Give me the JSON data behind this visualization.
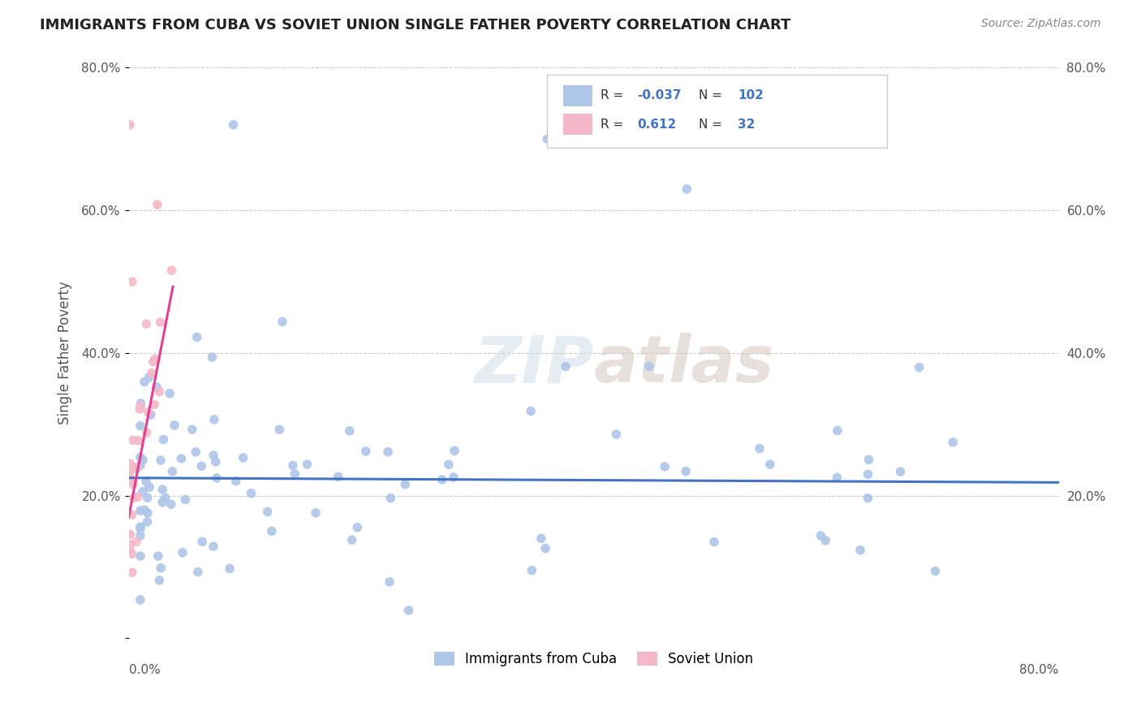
{
  "title": "IMMIGRANTS FROM CUBA VS SOVIET UNION SINGLE FATHER POVERTY CORRELATION CHART",
  "source": "Source: ZipAtlas.com",
  "ylabel": "Single Father Poverty",
  "legend_label1": "Immigrants from Cuba",
  "legend_label2": "Soviet Union",
  "r_cuba": -0.037,
  "n_cuba": 102,
  "r_soviet": 0.612,
  "n_soviet": 32,
  "cuba_color": "#aec6e8",
  "soviet_color": "#f4b8c8",
  "cuba_line_color": "#4472c4",
  "soviet_line_color": "#e04090",
  "xlim": [
    0.0,
    0.8
  ],
  "ylim": [
    0.0,
    0.8
  ],
  "yticks": [
    0.0,
    0.2,
    0.4,
    0.6,
    0.8
  ],
  "ytick_labels": [
    "",
    "20.0%",
    "40.0%",
    "60.0%",
    "80.0%"
  ],
  "background_color": "#ffffff",
  "grid_color": "#cccccc"
}
